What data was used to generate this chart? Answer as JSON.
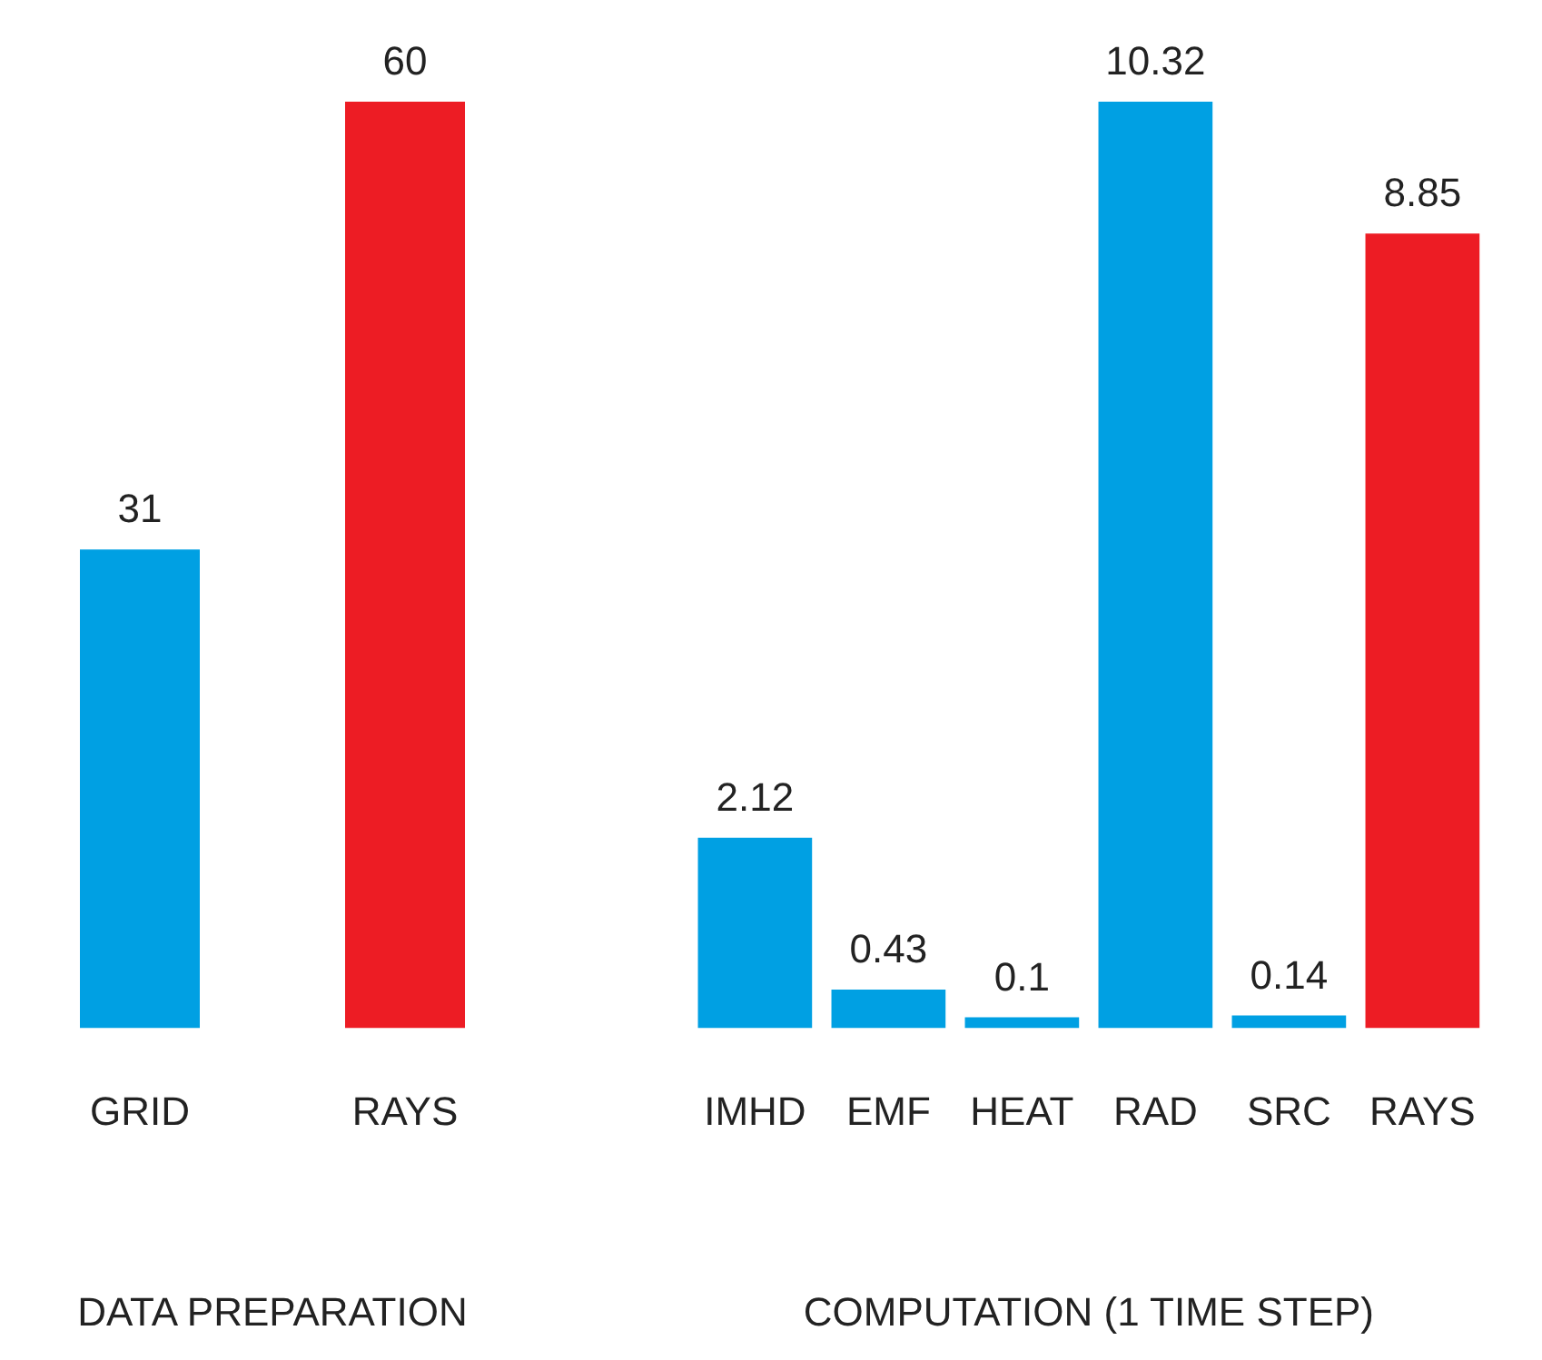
{
  "chart_data": [
    {
      "type": "bar",
      "xlabel": "DATA PREPARATION",
      "categories": [
        "GRID",
        "RAYS"
      ],
      "values": [
        31,
        60
      ],
      "colors": [
        "#00a0e3",
        "#ed1c24"
      ],
      "data_labels": true
    },
    {
      "type": "bar",
      "xlabel": "COMPUTATION (1 TIME STEP)",
      "categories": [
        "IMHD",
        "EMF",
        "HEAT",
        "RAD",
        "SRC",
        "RAYS"
      ],
      "values": [
        2.12,
        0.43,
        0.1,
        10.32,
        0.14,
        8.85
      ],
      "colors": [
        "#00a0e3",
        "#00a0e3",
        "#00a0e3",
        "#00a0e3",
        "#00a0e3",
        "#ed1c24"
      ],
      "data_labels": true
    }
  ]
}
